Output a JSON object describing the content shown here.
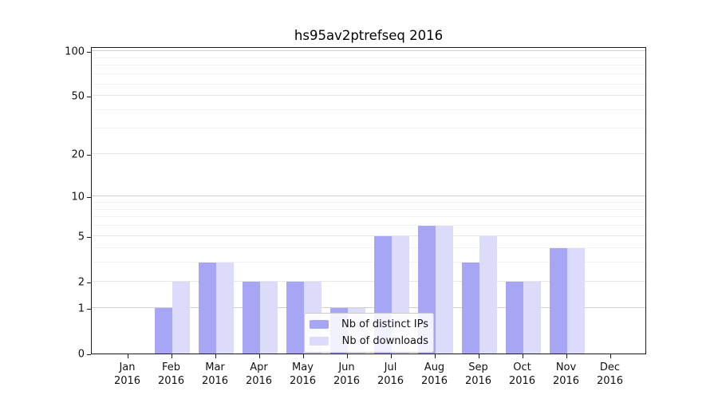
{
  "figure": {
    "background": "#ffffff"
  },
  "chart_data": {
    "type": "bar",
    "title": "hs95av2ptrefseq 2016",
    "xlabel": "",
    "ylabel": "",
    "months": [
      "Jan",
      "Feb",
      "Mar",
      "Apr",
      "May",
      "Jun",
      "Jul",
      "Aug",
      "Sep",
      "Oct",
      "Nov",
      "Dec"
    ],
    "year": "2016",
    "series": [
      {
        "name": "Nb of distinct IPs",
        "color": "#a6a6f5",
        "values": [
          0,
          1,
          3,
          2,
          2,
          1,
          5,
          6,
          3,
          2,
          4,
          0
        ]
      },
      {
        "name": "Nb of downloads",
        "color": "#dcdcfa",
        "values": [
          0,
          2,
          3,
          2,
          2,
          1,
          5,
          6,
          5,
          2,
          4,
          0
        ]
      }
    ],
    "y_axis": {
      "scale": "log1p",
      "ticks": [
        0,
        1,
        2,
        5,
        10,
        20,
        50,
        100
      ],
      "max": 108,
      "major_gridlines": [
        1,
        10,
        100
      ],
      "mid_gridlines": [
        2,
        5,
        20,
        50
      ],
      "minor_gridlines": [
        3,
        4,
        6,
        7,
        8,
        9,
        30,
        40,
        60,
        70,
        80,
        90
      ]
    },
    "grid": "on",
    "legend_position": "lower center"
  }
}
